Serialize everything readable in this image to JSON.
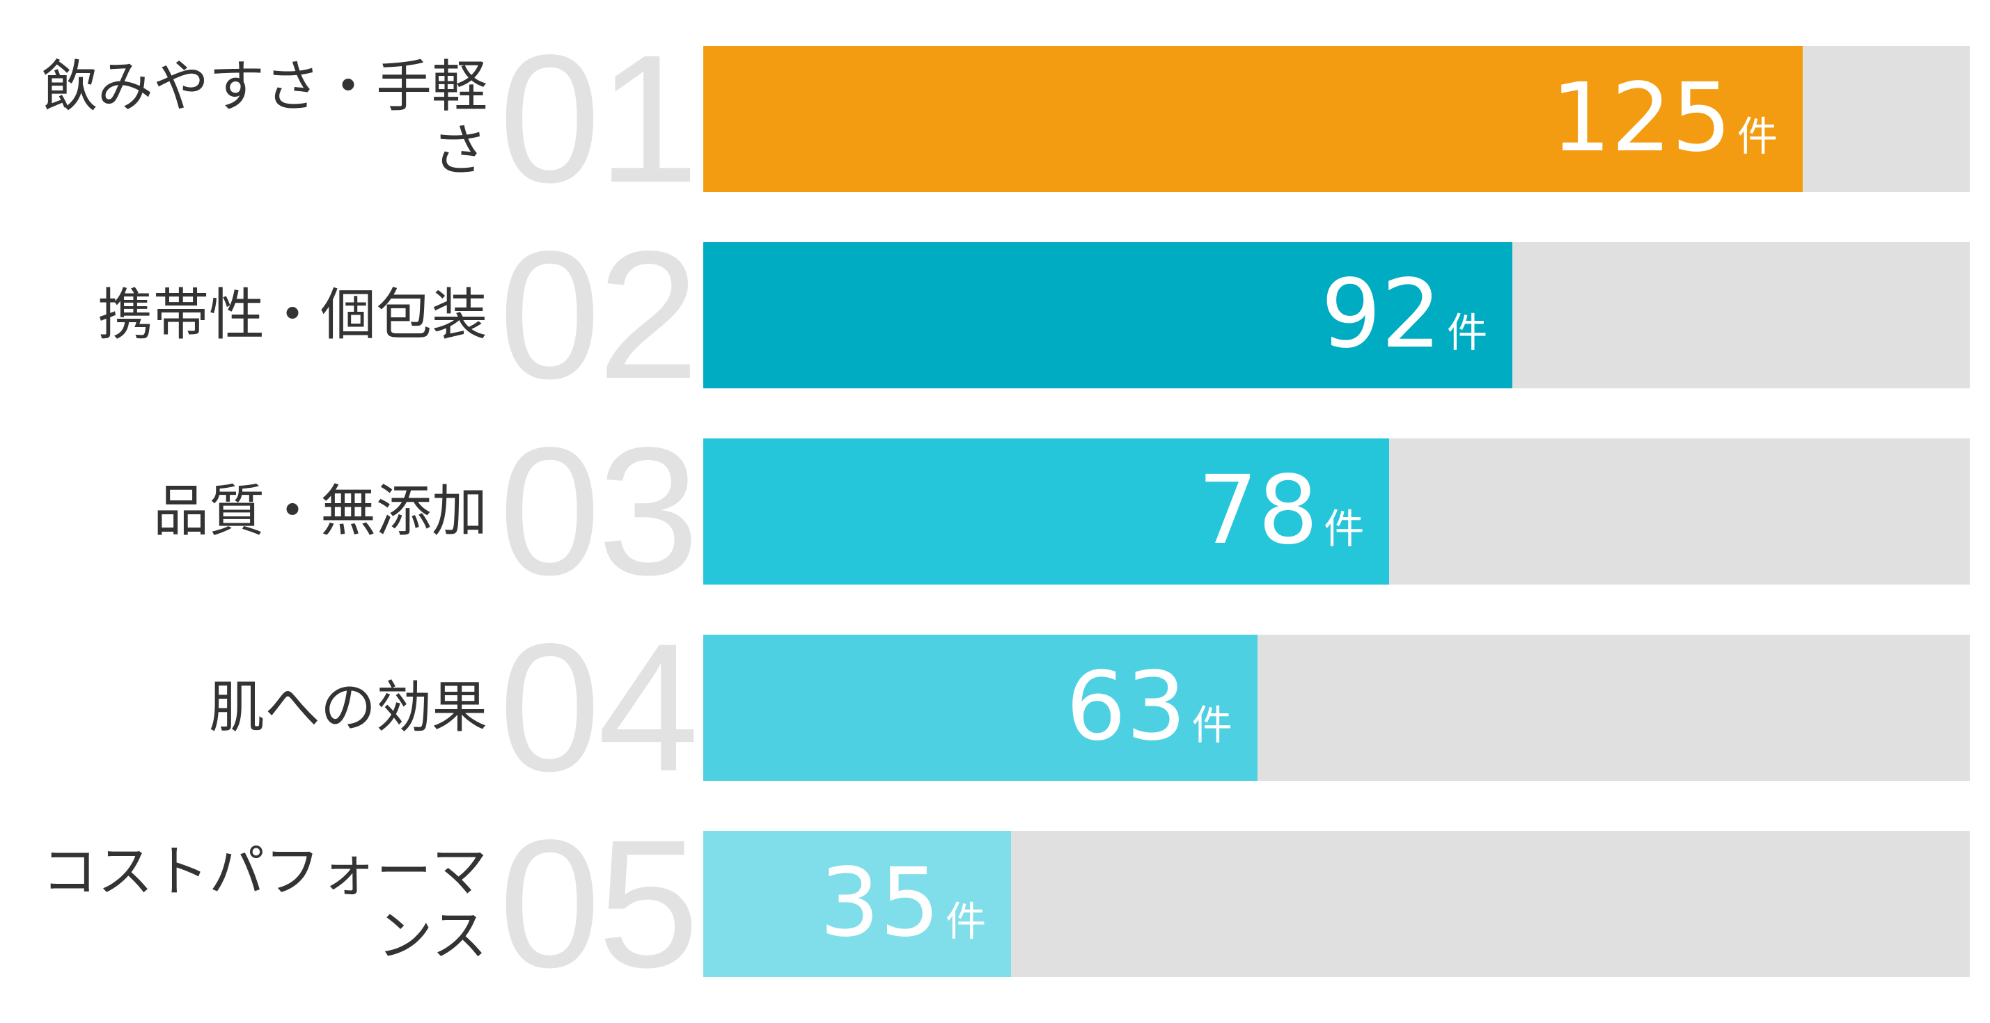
{
  "chart_data": {
    "type": "bar",
    "orientation": "horizontal",
    "categories": [
      "飲みやすさ・手軽さ",
      "携帯性・個包装",
      "品質・無添加",
      "肌への効果",
      "コストパフォーマンス"
    ],
    "ranks": [
      "01",
      "02",
      "03",
      "04",
      "05"
    ],
    "values": [
      125,
      92,
      78,
      63,
      35
    ],
    "unit": "件",
    "xlim": [
      0,
      144
    ],
    "colors": [
      "#F39C12",
      "#00ACC1",
      "#26C6DA",
      "#4DD0E1",
      "#80DEEA"
    ],
    "track_color": "#E0E0E0",
    "grid": false,
    "legend": "none"
  }
}
